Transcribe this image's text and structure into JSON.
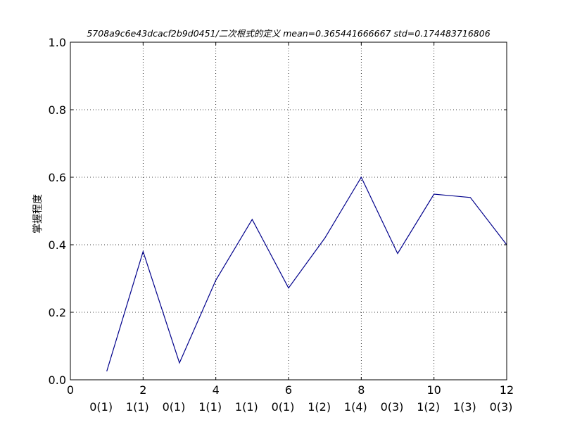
{
  "chart_data": {
    "type": "line",
    "title": "5708a9c6e43dcacf2b9d0451/二次根式的定义  mean=0.365441666667 std=0.174483716806",
    "xlabel": "",
    "ylabel": "掌握程度",
    "xlim": [
      0,
      12
    ],
    "ylim": [
      0.0,
      1.0
    ],
    "grid": true,
    "x_ticks": [
      "0",
      "2",
      "4",
      "6",
      "8",
      "10",
      "12"
    ],
    "y_ticks": [
      "0.0",
      "0.2",
      "0.4",
      "0.6",
      "0.8",
      "1.0"
    ],
    "categories": [
      "0(1)",
      "1(1)",
      "0(1)",
      "1(1)",
      "1(1)",
      "0(1)",
      "1(2)",
      "1(4)",
      "0(3)",
      "1(2)",
      "1(3)",
      "0(3)"
    ],
    "series": [
      {
        "x": [
          1,
          2,
          3,
          4,
          5,
          6,
          7,
          8,
          9,
          10,
          11,
          12
        ],
        "values": [
          0.025,
          0.38,
          0.05,
          0.295,
          0.475,
          0.272,
          0.42,
          0.6,
          0.374,
          0.55,
          0.54,
          0.4
        ],
        "color": "#00008b"
      }
    ]
  }
}
